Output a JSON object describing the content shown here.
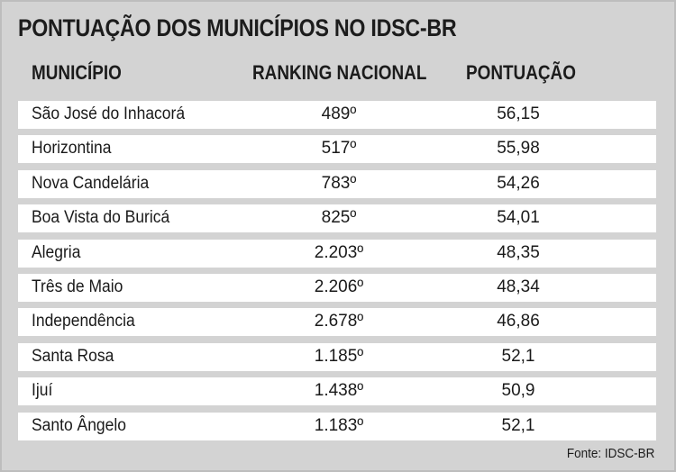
{
  "chart_data": {
    "type": "table",
    "title": "PONTUAÇÃO DOS MUNICÍPIOS NO IDSC-BR",
    "columns": [
      "MUNICÍPIO",
      "RANKING NACIONAL",
      "PONTUAÇÃO"
    ],
    "rows": [
      {
        "municipio": "São José do Inhacorá",
        "ranking": "489º",
        "pontuacao": "56,15"
      },
      {
        "municipio": "Horizontina",
        "ranking": "517º",
        "pontuacao": "55,98"
      },
      {
        "municipio": "Nova Candelária",
        "ranking": "783º",
        "pontuacao": "54,26"
      },
      {
        "municipio": "Boa Vista do Buricá",
        "ranking": "825º",
        "pontuacao": "54,01"
      },
      {
        "municipio": "Alegria",
        "ranking": "2.203º",
        "pontuacao": "48,35"
      },
      {
        "municipio": "Três de Maio",
        "ranking": "2.206º",
        "pontuacao": "48,34"
      },
      {
        "municipio": "Independência",
        "ranking": "2.678º",
        "pontuacao": "46,86"
      },
      {
        "municipio": "Santa Rosa",
        "ranking": "1.185º",
        "pontuacao": "52,1"
      },
      {
        "municipio": "Ijuí",
        "ranking": "1.438º",
        "pontuacao": "50,9"
      },
      {
        "municipio": "Santo Ângelo",
        "ranking": "1.183º",
        "pontuacao": "52,1"
      }
    ],
    "source": "Fonte: IDSC-BR"
  },
  "colors": {
    "background": "#d3d3d3",
    "row_background": "#ffffff",
    "text": "#1a1a1a"
  }
}
